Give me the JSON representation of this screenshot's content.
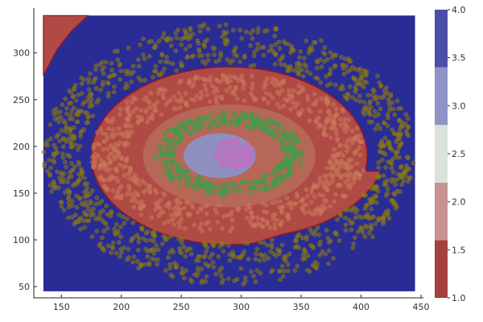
{
  "chart_data": {
    "type": "scatter",
    "title": "",
    "xlabel": "",
    "ylabel": "",
    "xlim": [
      127,
      452
    ],
    "ylim": [
      38,
      348
    ],
    "x_ticks": [
      "150",
      "200",
      "250",
      "300",
      "350",
      "400",
      "450"
    ],
    "y_ticks": [
      "50",
      "100",
      "150",
      "200",
      "250",
      "300"
    ],
    "grid": false,
    "legend": "none",
    "background_region": {
      "description": "decision-region contour fill (filled level 4.0 background, level 1.0 regions on top)",
      "x_range": [
        135,
        445
      ],
      "y_range": [
        45,
        340
      ]
    },
    "colorbar": {
      "range": [
        1.0,
        4.0
      ],
      "tick_labels": [
        "1.0",
        "1.5",
        "2.0",
        "2.5",
        "3.0",
        "3.5",
        "4.0"
      ],
      "levels": [
        {
          "from": 1.0,
          "to": 1.6,
          "color": "#a4403e"
        },
        {
          "from": 1.6,
          "to": 2.2,
          "color": "#c7928f"
        },
        {
          "from": 2.2,
          "to": 2.8,
          "color": "#d9e3dc"
        },
        {
          "from": 2.8,
          "to": 3.4,
          "color": "#8e94c6"
        },
        {
          "from": 3.4,
          "to": 4.0,
          "color": "#4b4fa8"
        }
      ]
    },
    "region_colors": {
      "level_4": "#2a2c95",
      "level_1": "#b04a45",
      "level_1_boundary": "#9a1a1a",
      "level_3": "#8f8fc0",
      "level_2": "#b86c5a"
    },
    "series": [
      {
        "color": "#8a7a10",
        "pattern": "ring",
        "cx": 290,
        "cy": 192,
        "rx_range": [
          125,
          155
        ],
        "ry_range": [
          95,
          140
        ],
        "points": 1100
      },
      {
        "color": "#c8785a",
        "pattern": "ring",
        "cx": 290,
        "cy": 192,
        "rx_range": [
          85,
          115
        ],
        "ry_range": [
          55,
          85
        ],
        "points": 700
      },
      {
        "color": "#3aa04a",
        "pattern": "ring",
        "cx": 290,
        "cy": 192,
        "rx_range": [
          45,
          62
        ],
        "ry_range": [
          30,
          45
        ],
        "points": 400
      },
      {
        "color": "#c070c0",
        "pattern": "disk",
        "cx": 295,
        "cy": 192,
        "rx_range": [
          0,
          17
        ],
        "ry_range": [
          0,
          16
        ],
        "points": 120
      }
    ]
  }
}
